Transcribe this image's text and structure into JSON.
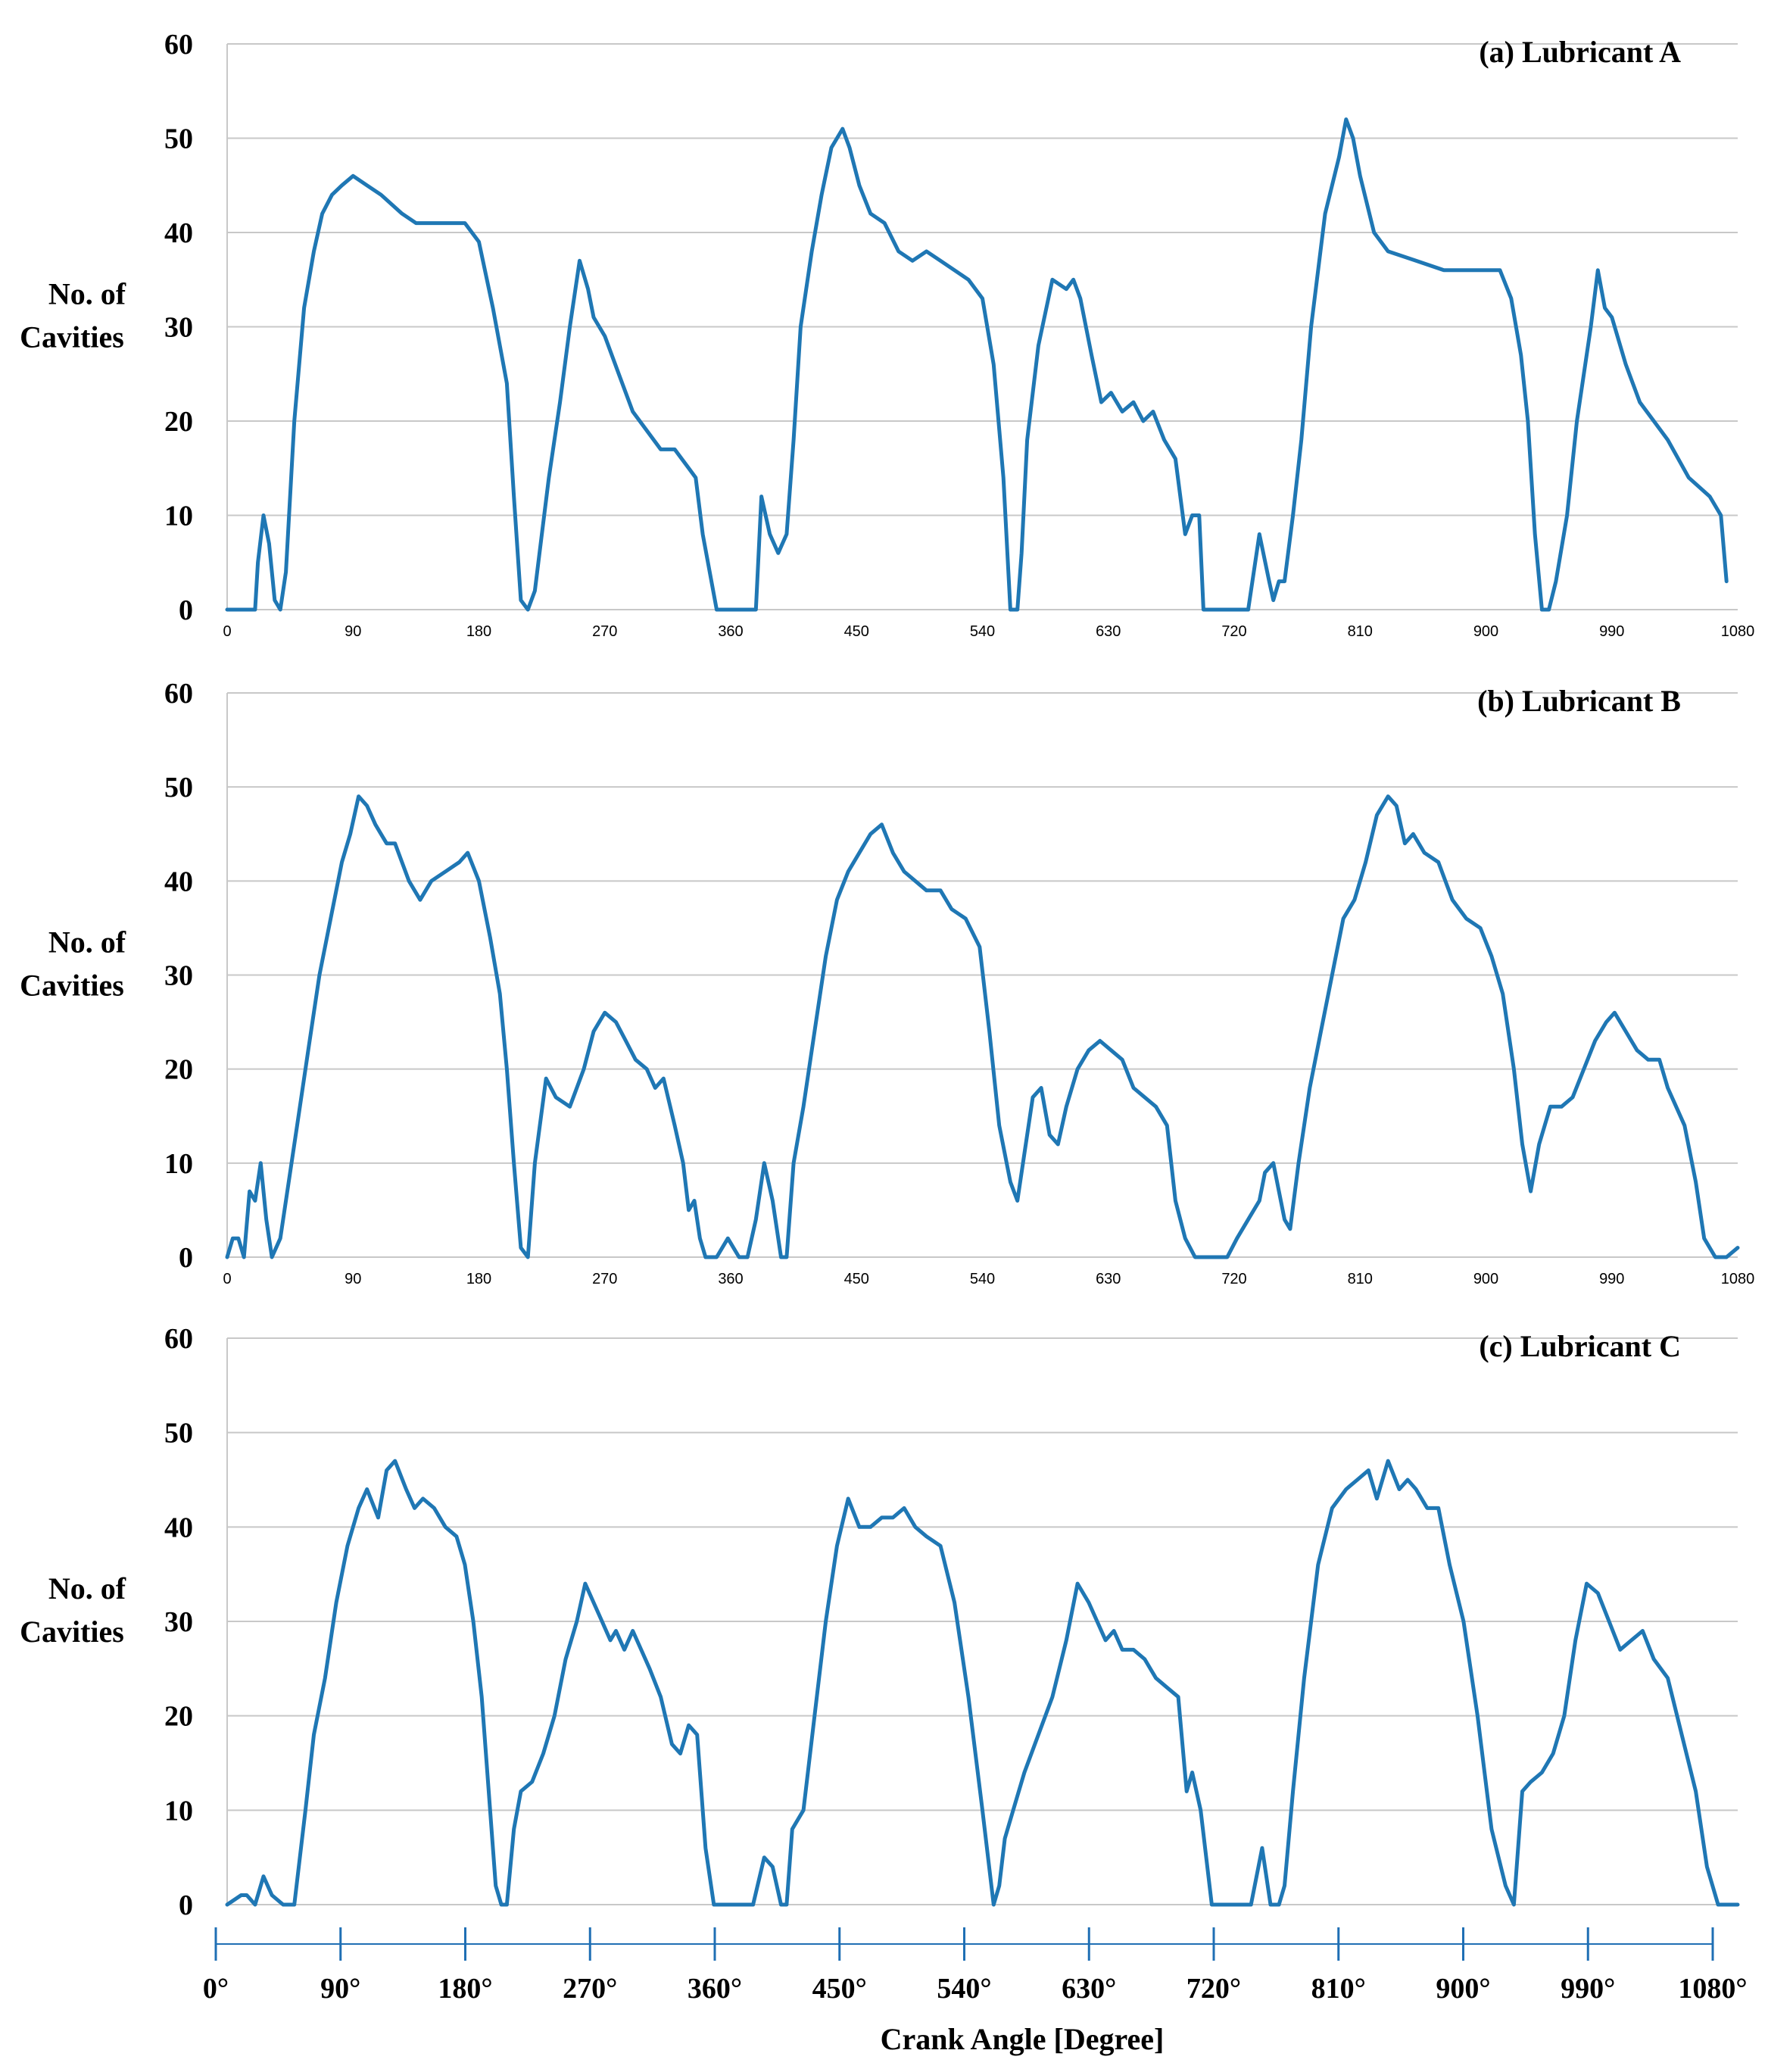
{
  "chart_data": [
    {
      "type": "line",
      "title": "(a) Lubricant A",
      "ylabel_line1": "No. of",
      "ylabel_line2": "Cavities",
      "ylim": [
        0,
        60
      ],
      "yticks": [
        "0",
        "10",
        "20",
        "30",
        "40",
        "50",
        "60"
      ],
      "xlim": [
        0,
        1080
      ],
      "xticks": [
        "0",
        "90",
        "180",
        "270",
        "360",
        "450",
        "540",
        "630",
        "720",
        "810",
        "900",
        "990",
        "1080"
      ],
      "series": [
        {
          "name": "Lubricant A",
          "color": "#1f77b4",
          "x": [
            0,
            20,
            22,
            26,
            30,
            34,
            38,
            42,
            48,
            55,
            62,
            68,
            75,
            82,
            90,
            100,
            110,
            125,
            135,
            145,
            160,
            170,
            180,
            190,
            200,
            205,
            210,
            215,
            220,
            225,
            230,
            238,
            245,
            252,
            258,
            262,
            270,
            280,
            290,
            300,
            310,
            320,
            330,
            335,
            340,
            350,
            360,
            370,
            378,
            382,
            388,
            394,
            400,
            405,
            410,
            418,
            425,
            432,
            440,
            445,
            452,
            460,
            470,
            480,
            490,
            500,
            510,
            520,
            530,
            540,
            548,
            555,
            560,
            565,
            568,
            572,
            580,
            590,
            600,
            605,
            610,
            618,
            625,
            632,
            640,
            648,
            655,
            662,
            670,
            678,
            685,
            690,
            695,
            698,
            702,
            708,
            714,
            730,
            738,
            745,
            748,
            752,
            756,
            762,
            768,
            775,
            785,
            795,
            800,
            805,
            810,
            820,
            830,
            850,
            870,
            890,
            900,
            910,
            918,
            925,
            930,
            935,
            940,
            945,
            950,
            958,
            965,
            970,
            975,
            980,
            985,
            990,
            1000,
            1010,
            1020,
            1030,
            1045,
            1060,
            1068,
            1072
          ],
          "values": [
            0,
            0,
            5,
            10,
            7,
            1,
            0,
            4,
            20,
            32,
            38,
            42,
            44,
            45,
            46,
            45,
            44,
            42,
            41,
            41,
            41,
            41,
            39,
            32,
            24,
            12,
            1,
            0,
            2,
            8,
            14,
            22,
            30,
            37,
            34,
            31,
            29,
            25,
            21,
            19,
            17,
            17,
            15,
            14,
            8,
            0,
            0,
            0,
            0,
            12,
            8,
            6,
            8,
            18,
            30,
            38,
            44,
            49,
            51,
            49,
            45,
            42,
            41,
            38,
            37,
            38,
            37,
            36,
            35,
            33,
            26,
            14,
            0,
            0,
            6,
            18,
            28,
            35,
            34,
            35,
            33,
            27,
            22,
            23,
            21,
            22,
            20,
            21,
            18,
            16,
            8,
            10,
            10,
            0,
            0,
            0,
            0,
            0,
            8,
            3,
            1,
            3,
            3,
            10,
            18,
            30,
            42,
            48,
            52,
            50,
            46,
            40,
            38,
            37,
            36,
            36,
            36,
            36,
            33,
            27,
            20,
            8,
            0,
            0,
            3,
            10,
            20,
            25,
            30,
            36,
            32,
            31,
            26,
            22,
            20,
            18,
            14,
            12,
            10,
            3
          ]
        }
      ]
    },
    {
      "type": "line",
      "title": "(b) Lubricant B",
      "ylabel_line1": "No. of",
      "ylabel_line2": "Cavities",
      "ylim": [
        0,
        60
      ],
      "yticks": [
        "0",
        "10",
        "20",
        "30",
        "40",
        "50",
        "60"
      ],
      "xlim": [
        0,
        1080
      ],
      "xticks": [
        "0",
        "90",
        "180",
        "270",
        "360",
        "450",
        "540",
        "630",
        "720",
        "810",
        "900",
        "990",
        "1080"
      ],
      "series": [
        {
          "name": "Lubricant B",
          "color": "#1f77b4",
          "x": [
            0,
            4,
            8,
            12,
            16,
            20,
            24,
            28,
            32,
            38,
            44,
            50,
            58,
            66,
            74,
            82,
            88,
            94,
            100,
            106,
            114,
            120,
            130,
            138,
            146,
            156,
            166,
            172,
            180,
            188,
            195,
            200,
            205,
            210,
            215,
            220,
            228,
            235,
            245,
            255,
            262,
            270,
            278,
            285,
            292,
            300,
            306,
            312,
            320,
            326,
            330,
            334,
            338,
            342,
            350,
            358,
            366,
            372,
            378,
            384,
            390,
            396,
            400,
            405,
            412,
            420,
            428,
            436,
            444,
            452,
            460,
            468,
            476,
            484,
            492,
            500,
            510,
            518,
            528,
            538,
            545,
            552,
            560,
            565,
            570,
            576,
            582,
            588,
            594,
            600,
            608,
            616,
            624,
            632,
            640,
            648,
            656,
            664,
            672,
            678,
            685,
            692,
            700,
            715,
            722,
            730,
            738,
            742,
            748,
            752,
            756,
            760,
            766,
            774,
            782,
            790,
            798,
            806,
            814,
            822,
            830,
            836,
            842,
            848,
            856,
            866,
            876,
            886,
            896,
            904,
            912,
            920,
            926,
            932,
            938,
            946,
            954,
            962,
            970,
            978,
            986,
            992,
            1000,
            1008,
            1016,
            1024,
            1030,
            1036,
            1042,
            1050,
            1056,
            1064,
            1072,
            1080
          ],
          "values": [
            0,
            2,
            2,
            0,
            7,
            6,
            10,
            4,
            0,
            2,
            8,
            14,
            22,
            30,
            36,
            42,
            45,
            49,
            48,
            46,
            44,
            44,
            40,
            38,
            40,
            41,
            42,
            43,
            40,
            34,
            28,
            20,
            10,
            1,
            0,
            10,
            19,
            17,
            16,
            20,
            24,
            26,
            25,
            23,
            21,
            20,
            18,
            19,
            14,
            10,
            5,
            6,
            2,
            0,
            0,
            2,
            0,
            0,
            4,
            10,
            6,
            0,
            0,
            10,
            16,
            24,
            32,
            38,
            41,
            43,
            45,
            46,
            43,
            41,
            40,
            39,
            39,
            37,
            36,
            33,
            24,
            14,
            8,
            6,
            11,
            17,
            18,
            13,
            12,
            16,
            20,
            22,
            23,
            22,
            21,
            18,
            17,
            16,
            14,
            6,
            2,
            0,
            0,
            0,
            2,
            4,
            6,
            9,
            10,
            7,
            4,
            3,
            10,
            18,
            24,
            30,
            36,
            38,
            42,
            47,
            49,
            48,
            44,
            45,
            43,
            42,
            38,
            36,
            35,
            32,
            28,
            20,
            12,
            7,
            12,
            16,
            16,
            17,
            20,
            23,
            25,
            26,
            24,
            22,
            21,
            21,
            18,
            16,
            14,
            8,
            2,
            0,
            0,
            1
          ]
        }
      ]
    },
    {
      "type": "line",
      "title": "(c) Lubricant C",
      "ylabel_line1": "No. of",
      "ylabel_line2": "Cavities",
      "ylim": [
        0,
        60
      ],
      "yticks": [
        "0",
        "10",
        "20",
        "30",
        "40",
        "50",
        "60"
      ],
      "xlim": [
        0,
        1080
      ],
      "series": [
        {
          "name": "Lubricant C",
          "color": "#1f77b4",
          "x": [
            0,
            10,
            14,
            20,
            26,
            32,
            40,
            48,
            56,
            62,
            70,
            78,
            86,
            94,
            100,
            108,
            114,
            120,
            128,
            134,
            140,
            148,
            156,
            164,
            170,
            176,
            182,
            188,
            192,
            196,
            200,
            205,
            210,
            218,
            226,
            234,
            242,
            250,
            256,
            262,
            268,
            274,
            278,
            284,
            290,
            296,
            302,
            310,
            318,
            324,
            330,
            336,
            342,
            348,
            352,
            356,
            366,
            376,
            384,
            390,
            396,
            400,
            404,
            412,
            420,
            428,
            436,
            444,
            452,
            460,
            468,
            476,
            484,
            492,
            500,
            510,
            520,
            530,
            540,
            548,
            552,
            556,
            562,
            570,
            580,
            590,
            600,
            608,
            616,
            622,
            628,
            634,
            640,
            648,
            656,
            664,
            672,
            680,
            686,
            690,
            696,
            704,
            712,
            722,
            732,
            740,
            746,
            752,
            756,
            762,
            770,
            780,
            790,
            800,
            808,
            816,
            822,
            830,
            838,
            844,
            850,
            858,
            866,
            874,
            884,
            894,
            904,
            914,
            920,
            926,
            932,
            940,
            948,
            956,
            964,
            972,
            980,
            988,
            996,
            1004,
            1012,
            1020,
            1030,
            1040,
            1050,
            1058,
            1066,
            1072,
            1080
          ],
          "values": [
            0,
            1,
            1,
            0,
            3,
            1,
            0,
            0,
            10,
            18,
            24,
            32,
            38,
            42,
            44,
            41,
            46,
            47,
            44,
            42,
            43,
            42,
            40,
            39,
            36,
            30,
            22,
            10,
            2,
            0,
            0,
            8,
            12,
            13,
            16,
            20,
            26,
            30,
            34,
            32,
            30,
            28,
            29,
            27,
            29,
            27,
            25,
            22,
            17,
            16,
            19,
            18,
            6,
            0,
            0,
            0,
            0,
            0,
            5,
            4,
            0,
            0,
            8,
            10,
            20,
            30,
            38,
            43,
            40,
            40,
            41,
            41,
            42,
            40,
            39,
            38,
            32,
            22,
            10,
            0,
            2,
            7,
            10,
            14,
            18,
            22,
            28,
            34,
            32,
            30,
            28,
            29,
            27,
            27,
            26,
            24,
            23,
            22,
            12,
            14,
            10,
            0,
            0,
            0,
            0,
            6,
            0,
            0,
            2,
            12,
            24,
            36,
            42,
            44,
            45,
            46,
            43,
            47,
            44,
            45,
            44,
            42,
            42,
            36,
            30,
            20,
            8,
            2,
            0,
            12,
            13,
            14,
            16,
            20,
            28,
            34,
            33,
            30,
            27,
            28,
            29,
            26,
            24,
            18,
            12,
            4,
            0,
            0,
            0
          ]
        }
      ]
    }
  ],
  "xaxis": {
    "tick_labels": [
      "0°",
      "90°",
      "180°",
      "270°",
      "360°",
      "450°",
      "540°",
      "630°",
      "720°",
      "810°",
      "900°",
      "990°",
      "1080°"
    ],
    "title": "Crank Angle [Degree]"
  }
}
